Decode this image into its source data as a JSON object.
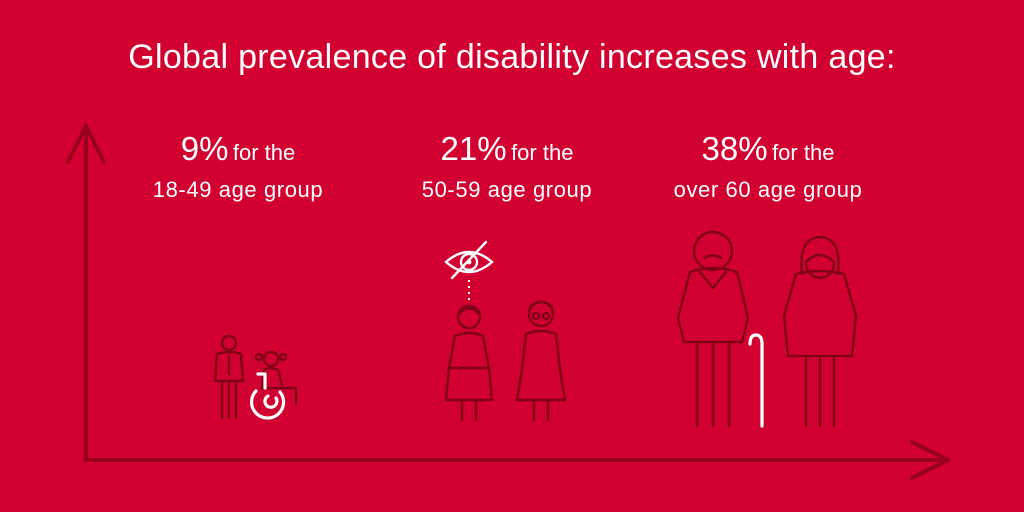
{
  "title": "Global prevalence of disability increases with age:",
  "colors": {
    "background": "#d10031",
    "text": "#ffffff",
    "figure_outline": "#7f0018",
    "axis": "#99001d"
  },
  "groups": [
    {
      "percent": "9%",
      "for_text": "for the",
      "age_group": "18-49 age group"
    },
    {
      "percent": "21%",
      "for_text": "for the",
      "age_group": "50-59 age group"
    },
    {
      "percent": "38%",
      "for_text": "for the",
      "age_group": "over 60 age group"
    }
  ],
  "icons": [
    "axis-arrows",
    "young-man-icon",
    "wheelchair-icon",
    "crossed-eye-icon",
    "older-woman-icon",
    "older-woman-glasses-icon",
    "elderly-man-icon",
    "cane-icon",
    "elderly-woman-headscarf-icon"
  ]
}
